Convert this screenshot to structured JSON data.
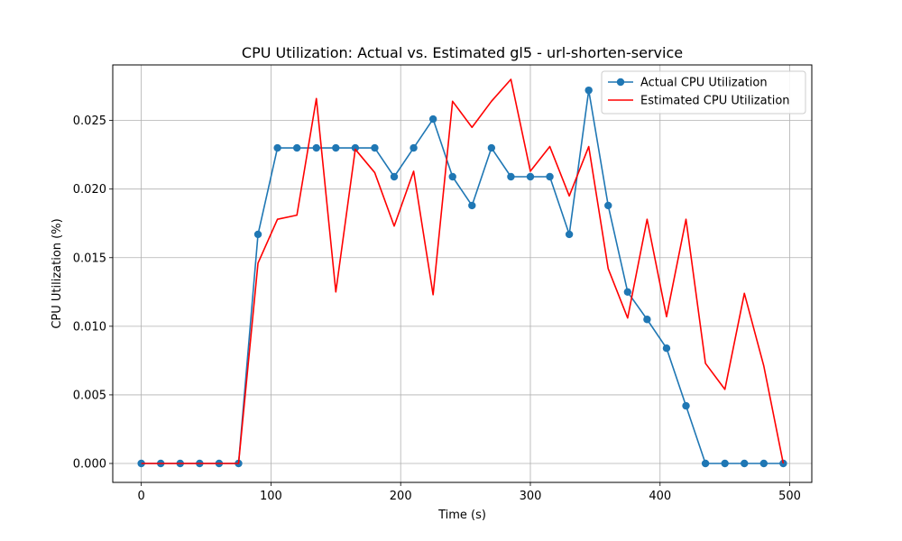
{
  "chart_data": {
    "type": "line",
    "title": "CPU Utilization: Actual vs. Estimated gl5 - url-shorten-service",
    "xlabel": "Time (s)",
    "ylabel": "CPU Utilization (%)",
    "xlim": [
      -22,
      517
    ],
    "ylim": [
      -0.00138,
      0.02905
    ],
    "x_ticks": [
      0,
      100,
      200,
      300,
      400,
      500
    ],
    "y_ticks": [
      0.0,
      0.005,
      0.01,
      0.015,
      0.02,
      0.025
    ],
    "x_tick_labels": [
      "0",
      "100",
      "200",
      "300",
      "400",
      "500"
    ],
    "y_tick_labels": [
      "0.000",
      "0.005",
      "0.010",
      "0.015",
      "0.020",
      "0.025"
    ],
    "grid": true,
    "legend_position": "top-right",
    "series": [
      {
        "name": "Actual CPU Utilization",
        "color": "#1f77b4",
        "marker": "circle",
        "x": [
          0,
          15,
          30,
          45,
          60,
          75,
          90,
          105,
          120,
          135,
          150,
          165,
          180,
          195,
          210,
          225,
          240,
          255,
          270,
          285,
          300,
          315,
          330,
          345,
          360,
          375,
          390,
          405,
          420,
          435,
          450,
          465,
          480,
          495
        ],
        "values": [
          0.0,
          0.0,
          0.0,
          0.0,
          0.0,
          0.0,
          0.0167,
          0.023,
          0.023,
          0.023,
          0.023,
          0.023,
          0.023,
          0.0209,
          0.023,
          0.0251,
          0.0209,
          0.0188,
          0.023,
          0.0209,
          0.0209,
          0.0209,
          0.0167,
          0.0272,
          0.0188,
          0.0125,
          0.0105,
          0.0084,
          0.0042,
          0.0,
          0.0,
          0.0,
          0.0,
          0.0
        ]
      },
      {
        "name": "Estimated CPU Utilization",
        "color": "#ff0000",
        "marker": "none",
        "x": [
          0,
          15,
          30,
          45,
          60,
          75,
          90,
          105,
          120,
          135,
          150,
          165,
          180,
          195,
          210,
          225,
          240,
          255,
          270,
          285,
          300,
          315,
          330,
          345,
          360,
          375,
          390,
          405,
          420,
          435,
          450,
          465,
          480,
          495
        ],
        "values": [
          0.0,
          0.0,
          0.0,
          0.0,
          0.0,
          0.0,
          0.0146,
          0.0178,
          0.0181,
          0.0266,
          0.0125,
          0.0229,
          0.0212,
          0.0173,
          0.0213,
          0.0123,
          0.0264,
          0.0245,
          0.0264,
          0.028,
          0.0213,
          0.0231,
          0.0195,
          0.0231,
          0.0142,
          0.0106,
          0.0178,
          0.0107,
          0.0178,
          0.0073,
          0.0054,
          0.0124,
          0.0071,
          0.0
        ]
      }
    ]
  }
}
